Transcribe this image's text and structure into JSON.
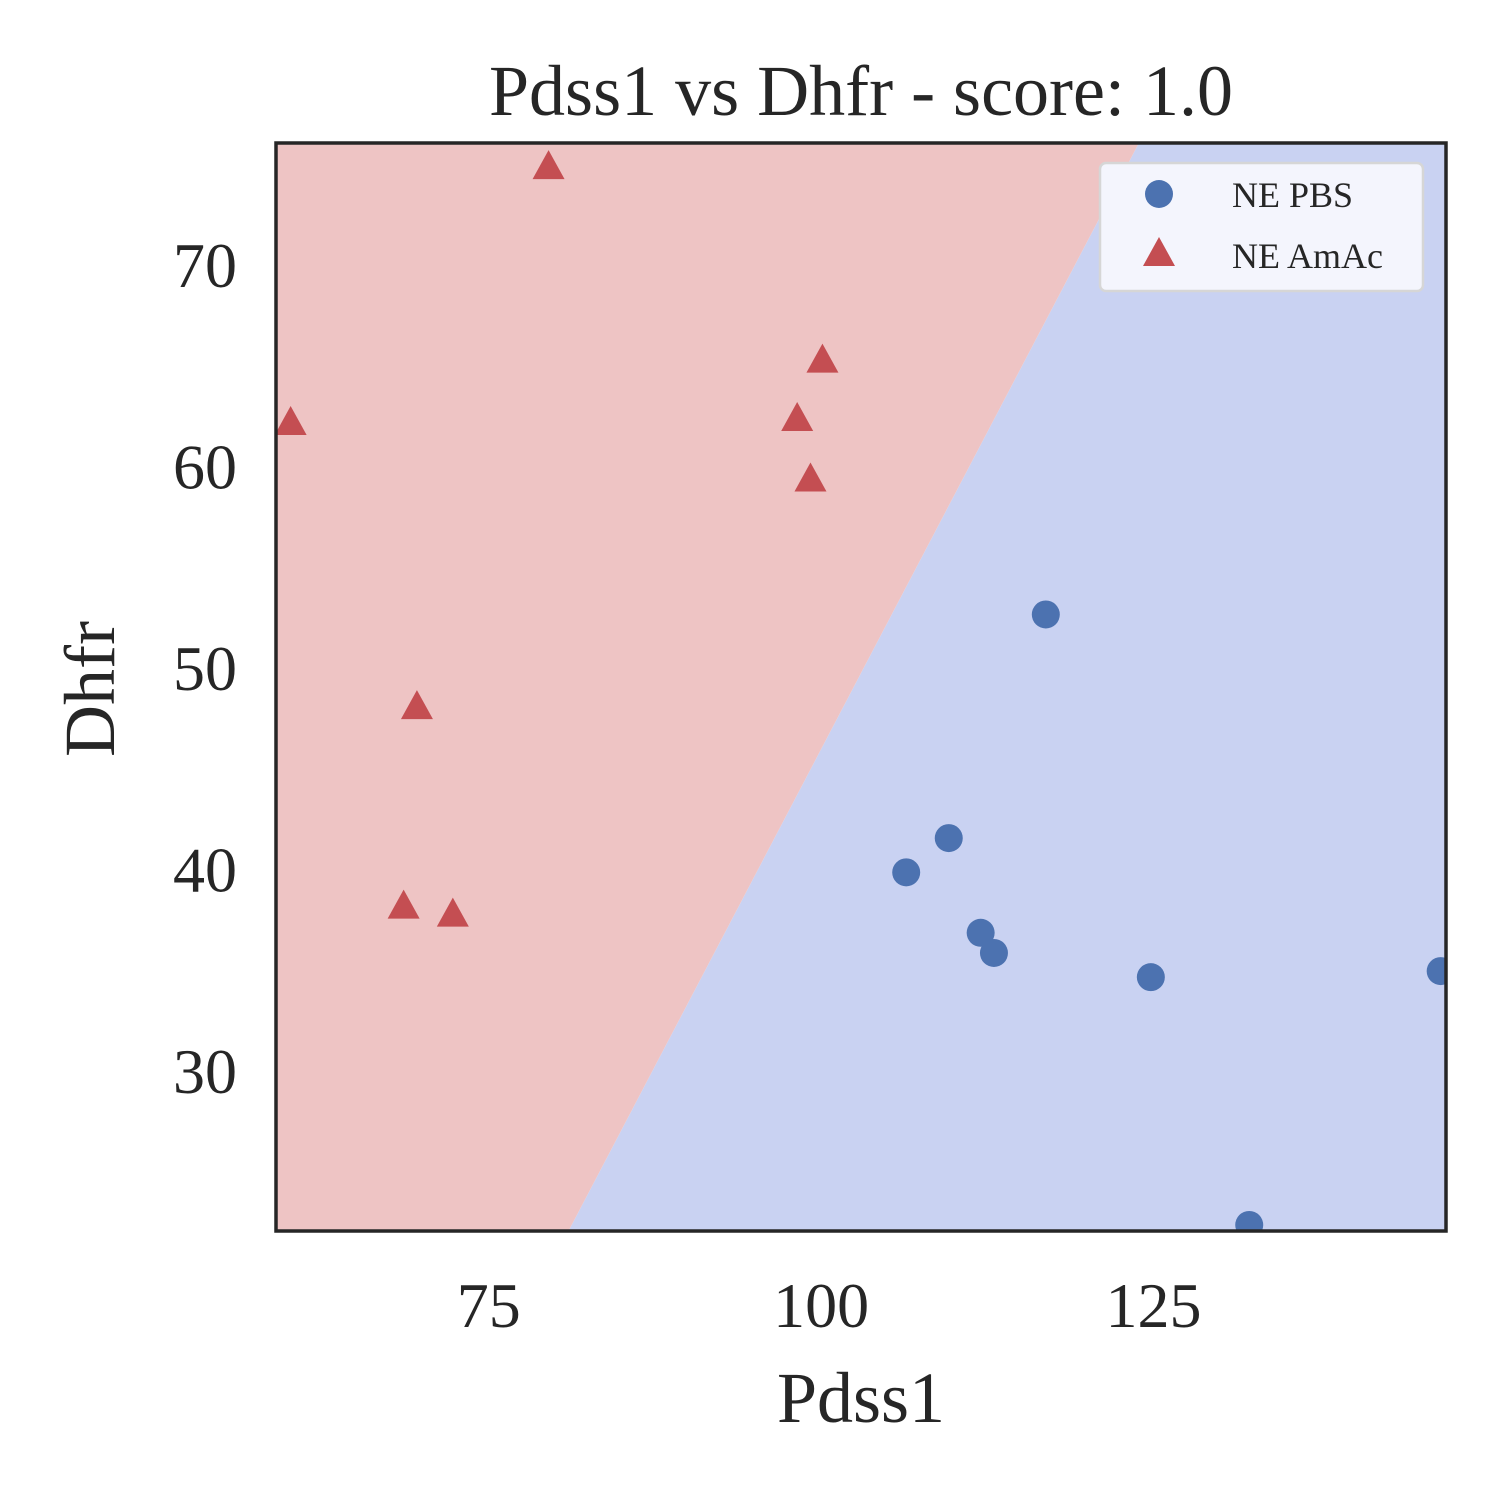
{
  "chart_data": {
    "type": "scatter",
    "title": "Pdss1 vs Dhfr - score: 1.0",
    "xlabel": "Pdss1",
    "ylabel": "Dhfr",
    "xlim": [
      59,
      147
    ],
    "ylim": [
      22,
      76
    ],
    "xticks": [
      75,
      100,
      125
    ],
    "yticks": [
      30,
      40,
      50,
      60,
      70
    ],
    "grid": false,
    "legend_position": "top-right",
    "decision_boundary": {
      "points": [
        [
          81,
          22
        ],
        [
          123.9,
          76
        ]
      ],
      "left_region_class": "NE AmAc",
      "right_region_class": "NE PBS",
      "left_color": "#eec4c4",
      "right_color": "#c9d2f2"
    },
    "series": [
      {
        "name": "NE PBS",
        "marker": "circle",
        "color": "#4c72b0",
        "points": [
          [
            116.9,
            52.6
          ],
          [
            106.4,
            39.8
          ],
          [
            109.6,
            41.5
          ],
          [
            112.0,
            36.8
          ],
          [
            113.0,
            35.8
          ],
          [
            124.8,
            34.6
          ],
          [
            132.2,
            22.3
          ],
          [
            146.6,
            34.9
          ]
        ]
      },
      {
        "name": "NE AmAc",
        "marker": "triangle",
        "color": "#c44e52",
        "points": [
          [
            79.5,
            74.8
          ],
          [
            60.1,
            62.1
          ],
          [
            98.2,
            62.3
          ],
          [
            100.1,
            65.2
          ],
          [
            99.2,
            59.3
          ],
          [
            69.6,
            48.0
          ],
          [
            68.6,
            38.1
          ],
          [
            72.3,
            37.7
          ]
        ]
      }
    ]
  }
}
